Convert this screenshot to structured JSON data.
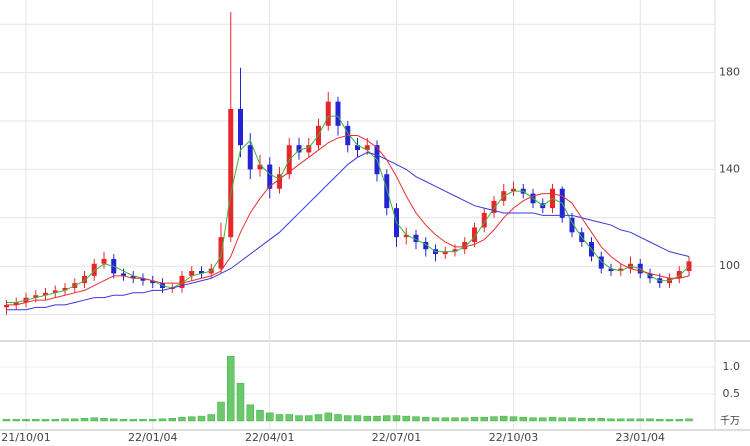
{
  "chart_data": {
    "type": "candlestick",
    "categories": [
      null,
      null,
      "21/10/01",
      null,
      null,
      null,
      null,
      null,
      null,
      null,
      null,
      null,
      null,
      null,
      null,
      "22/01/04",
      null,
      null,
      null,
      null,
      null,
      null,
      null,
      null,
      null,
      null,
      null,
      "22/04/01",
      null,
      null,
      null,
      null,
      null,
      null,
      null,
      null,
      null,
      null,
      null,
      null,
      "22/07/01",
      null,
      null,
      null,
      null,
      null,
      null,
      null,
      null,
      null,
      null,
      null,
      "22/10/03",
      null,
      null,
      null,
      null,
      null,
      null,
      null,
      null,
      null,
      null,
      null,
      null,
      "23/01/04",
      null,
      null,
      null,
      null,
      null
    ],
    "open": [
      83,
      84,
      85,
      87,
      88,
      89,
      90,
      91,
      93,
      96,
      101,
      103,
      97,
      96,
      95,
      94,
      93,
      91,
      91,
      96,
      98,
      97,
      99,
      112,
      165,
      150,
      140,
      142,
      132,
      138,
      150,
      147,
      150,
      158,
      168,
      158,
      150,
      148,
      150,
      138,
      124,
      112,
      113,
      110,
      107,
      105,
      106,
      107,
      110,
      116,
      122,
      127,
      131,
      132,
      130,
      126,
      124,
      132,
      120,
      114,
      110,
      104,
      99,
      98,
      99,
      101,
      97,
      95,
      93,
      95,
      98
    ],
    "high": [
      86,
      87,
      89,
      90,
      91,
      92,
      93,
      95,
      98,
      103,
      106,
      105,
      99,
      98,
      97,
      96,
      95,
      93,
      98,
      100,
      100,
      101,
      118,
      205,
      182,
      155,
      146,
      145,
      141,
      153,
      153,
      153,
      161,
      172,
      170,
      160,
      153,
      153,
      152,
      140,
      126,
      116,
      115,
      112,
      109,
      108,
      109,
      112,
      118,
      124,
      129,
      134,
      135,
      134,
      132,
      128,
      134,
      133,
      122,
      116,
      112,
      106,
      101,
      101,
      104,
      103,
      99,
      97,
      97,
      100,
      104
    ],
    "low": [
      80,
      82,
      83,
      85,
      86,
      87,
      88,
      89,
      91,
      94,
      99,
      95,
      94,
      93,
      92,
      91,
      89,
      89,
      89,
      94,
      95,
      95,
      97,
      110,
      145,
      136,
      137,
      128,
      130,
      136,
      144,
      145,
      148,
      156,
      154,
      147,
      145,
      146,
      135,
      121,
      108,
      109,
      107,
      104,
      102,
      103,
      104,
      105,
      108,
      114,
      120,
      125,
      129,
      128,
      124,
      122,
      122,
      118,
      112,
      108,
      102,
      97,
      96,
      96,
      97,
      95,
      93,
      91,
      91,
      93,
      96
    ],
    "close": [
      84,
      85,
      87,
      88,
      89,
      90,
      91,
      93,
      96,
      101,
      103,
      97,
      96,
      95,
      94,
      93,
      91,
      91,
      96,
      98,
      97,
      99,
      112,
      165,
      150,
      140,
      142,
      132,
      138,
      150,
      147,
      150,
      158,
      168,
      158,
      150,
      148,
      150,
      138,
      124,
      112,
      113,
      110,
      107,
      105,
      106,
      107,
      110,
      116,
      122,
      127,
      131,
      132,
      130,
      126,
      124,
      132,
      120,
      114,
      110,
      104,
      99,
      98,
      99,
      101,
      97,
      95,
      93,
      95,
      98,
      102
    ],
    "up_color": "#e8262a",
    "down_color": "#2424d4",
    "ylim": [
      69.5,
      210
    ],
    "yticks": [
      100,
      140,
      180
    ],
    "grid_values": [
      80,
      120,
      160,
      200
    ],
    "lines": [
      {
        "color": "#3cb43c",
        "values": [
          85,
          85,
          86,
          87,
          88,
          89,
          90,
          92,
          94,
          98,
          101,
          100,
          98,
          96,
          95,
          94,
          92,
          91,
          93,
          96,
          97,
          98,
          104,
          130,
          148,
          152,
          142,
          138,
          136,
          144,
          148,
          149,
          154,
          162,
          162,
          155,
          150,
          148,
          144,
          132,
          118,
          113,
          111,
          109,
          106,
          106,
          106,
          108,
          112,
          118,
          124,
          129,
          131,
          131,
          128,
          125,
          128,
          126,
          118,
          112,
          107,
          102,
          99,
          98,
          100,
          99,
          96,
          94,
          94,
          96,
          100
        ]
      },
      {
        "color": "#e83030",
        "values": [
          84,
          84,
          85,
          86,
          86,
          87,
          88,
          89,
          90,
          92,
          94,
          96,
          96,
          95,
          95,
          94,
          93,
          93,
          93,
          94,
          95,
          96,
          98,
          104,
          114,
          122,
          128,
          133,
          136,
          139,
          142,
          145,
          148,
          151,
          153,
          154,
          154,
          152,
          149,
          144,
          137,
          129,
          122,
          117,
          113,
          110,
          108,
          108,
          109,
          111,
          115,
          120,
          124,
          127,
          129,
          130,
          130,
          129,
          126,
          120,
          114,
          108,
          104,
          101,
          99,
          98,
          97,
          96,
          95,
          95,
          96
        ]
      },
      {
        "color": "#3a3ad8",
        "values": [
          82,
          82,
          82,
          83,
          83,
          84,
          84,
          85,
          86,
          87,
          87,
          88,
          88,
          89,
          89,
          90,
          90,
          91,
          92,
          93,
          94,
          95,
          97,
          99,
          102,
          105,
          108,
          111,
          114,
          118,
          122,
          126,
          130,
          134,
          138,
          142,
          145,
          147,
          146,
          144,
          142,
          140,
          137,
          135,
          133,
          131,
          129,
          127,
          125,
          124,
          123,
          122,
          122,
          122,
          122,
          121,
          121,
          121,
          121,
          120,
          119,
          118,
          117,
          115,
          114,
          112,
          110,
          108,
          106,
          105,
          104
        ]
      }
    ],
    "volume": {
      "color": "#3cb43c",
      "values": [
        0.03,
        0.03,
        0.03,
        0.03,
        0.03,
        0.03,
        0.04,
        0.04,
        0.05,
        0.06,
        0.05,
        0.04,
        0.03,
        0.03,
        0.03,
        0.03,
        0.04,
        0.05,
        0.07,
        0.08,
        0.09,
        0.12,
        0.35,
        1.2,
        0.7,
        0.3,
        0.2,
        0.15,
        0.12,
        0.12,
        0.1,
        0.1,
        0.12,
        0.15,
        0.12,
        0.1,
        0.1,
        0.09,
        0.09,
        0.1,
        0.1,
        0.09,
        0.08,
        0.07,
        0.06,
        0.06,
        0.06,
        0.06,
        0.07,
        0.07,
        0.08,
        0.09,
        0.08,
        0.07,
        0.06,
        0.06,
        0.07,
        0.06,
        0.06,
        0.05,
        0.05,
        0.05,
        0.04,
        0.04,
        0.04,
        0.04,
        0.04,
        0.03,
        0.03,
        0.03,
        0.04
      ],
      "ylim": [
        -0.167,
        1.444
      ],
      "yticks": [
        0.5,
        {
          "value": 1,
          "label": "1.0"
        }
      ],
      "unit": "千万"
    }
  }
}
